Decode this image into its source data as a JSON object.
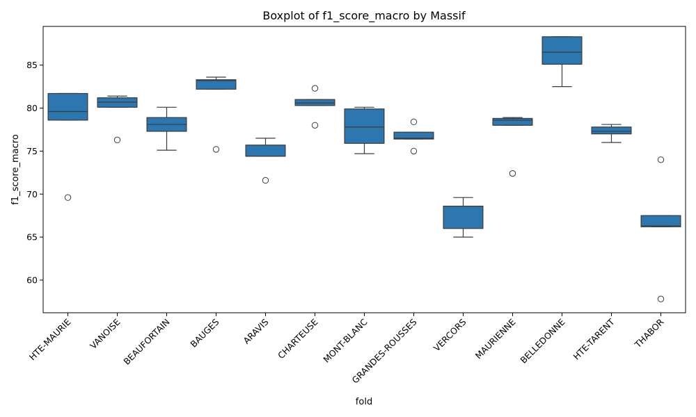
{
  "chart_data": {
    "type": "box",
    "title": "Boxplot of f1_score_macro by Massif",
    "xlabel": "fold",
    "ylabel": "f1_score_macro",
    "ylim": [
      56.2,
      89.5
    ],
    "yticks": [
      60,
      65,
      70,
      75,
      80,
      85
    ],
    "grid": false,
    "box_color": "#2d77b1",
    "line_color": "#3a3a3a",
    "categories": [
      "HTE-MAURIE",
      "VANOISE",
      "BEAUFORTAIN",
      "BAUGES",
      "ARAVIS",
      "CHARTEUSE",
      "MONT-BLANC",
      "GRANDES-ROUSSES",
      "VERCORS",
      "MAURIENNE",
      "BELLEDONNE",
      "HTE-TARENT",
      "THABOR"
    ],
    "boxes": [
      {
        "whislo": 78.6,
        "q1": 78.6,
        "med": 79.6,
        "q3": 81.7,
        "whishi": 81.7,
        "fliers": [
          69.6
        ]
      },
      {
        "whislo": 80.1,
        "q1": 80.1,
        "med": 80.7,
        "q3": 81.2,
        "whishi": 81.4,
        "fliers": [
          76.3
        ]
      },
      {
        "whislo": 75.1,
        "q1": 77.3,
        "med": 78.1,
        "q3": 78.9,
        "whishi": 80.1,
        "fliers": []
      },
      {
        "whislo": 82.2,
        "q1": 82.2,
        "med": 83.2,
        "q3": 83.3,
        "whishi": 83.6,
        "fliers": [
          75.2
        ]
      },
      {
        "whislo": 74.4,
        "q1": 74.4,
        "med": 74.4,
        "q3": 75.7,
        "whishi": 76.5,
        "fliers": [
          71.6
        ]
      },
      {
        "whislo": 80.3,
        "q1": 80.3,
        "med": 80.6,
        "q3": 81.0,
        "whishi": 81.0,
        "fliers": [
          82.3,
          78.0
        ]
      },
      {
        "whislo": 74.7,
        "q1": 75.9,
        "med": 77.8,
        "q3": 79.9,
        "whishi": 80.1,
        "fliers": []
      },
      {
        "whislo": 76.4,
        "q1": 76.4,
        "med": 76.5,
        "q3": 77.2,
        "whishi": 77.2,
        "fliers": [
          78.4,
          75.0
        ]
      },
      {
        "whislo": 65.0,
        "q1": 66.0,
        "med": 68.6,
        "q3": 68.6,
        "whishi": 69.6,
        "fliers": []
      },
      {
        "whislo": 78.0,
        "q1": 78.0,
        "med": 78.6,
        "q3": 78.8,
        "whishi": 78.9,
        "fliers": [
          72.4
        ]
      },
      {
        "whislo": 82.5,
        "q1": 85.1,
        "med": 86.5,
        "q3": 88.3,
        "whishi": 88.3,
        "fliers": []
      },
      {
        "whislo": 76.0,
        "q1": 77.0,
        "med": 77.3,
        "q3": 77.8,
        "whishi": 78.1,
        "fliers": []
      },
      {
        "whislo": 66.2,
        "q1": 66.2,
        "med": 66.3,
        "q3": 67.5,
        "whishi": 67.5,
        "fliers": [
          74.0,
          57.8
        ]
      }
    ]
  }
}
